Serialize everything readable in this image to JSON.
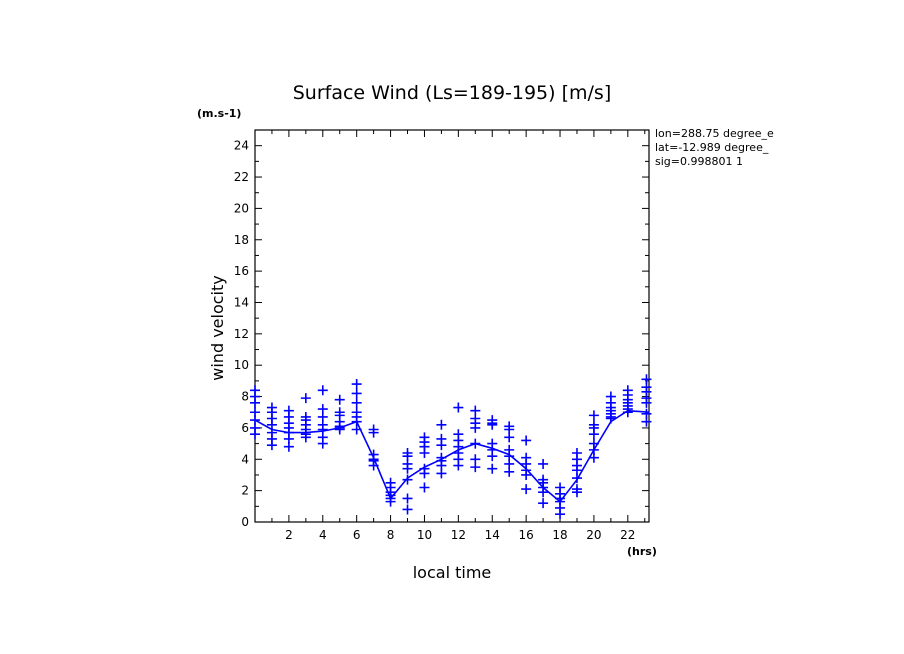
{
  "chart_data": {
    "type": "scatter",
    "title": "Surface Wind  (Ls=189-195) [m/s]",
    "xlabel": "local time",
    "ylabel": "wind velocity",
    "x_unit": "(hrs)",
    "y_unit": "(m.s-1)",
    "xlim": [
      0,
      23.25
    ],
    "ylim": [
      0,
      25
    ],
    "x_ticks": [
      2,
      4,
      6,
      8,
      10,
      12,
      14,
      16,
      18,
      20,
      22
    ],
    "y_ticks": [
      0,
      2,
      4,
      6,
      8,
      10,
      12,
      14,
      16,
      18,
      20,
      22,
      24
    ],
    "annotations": [
      "lon=288.75 degree_e",
      "lat=-12.989 degree_",
      "sig=0.998801 1"
    ],
    "series": [
      {
        "name": "mean",
        "kind": "line",
        "color": "#0000ff",
        "x": [
          0,
          1,
          2,
          3,
          4,
          5,
          6,
          7,
          8,
          9,
          10,
          11,
          12,
          13,
          14,
          15,
          16,
          17,
          18,
          19,
          20,
          21,
          22,
          23.25
        ],
        "y": [
          6.5,
          5.9,
          5.7,
          5.7,
          5.8,
          6.0,
          6.4,
          4.1,
          1.5,
          2.8,
          3.5,
          4.0,
          4.6,
          5.0,
          4.7,
          4.3,
          3.4,
          2.2,
          1.3,
          2.7,
          4.6,
          6.4,
          7.1,
          7.0
        ]
      },
      {
        "name": "samples",
        "kind": "scatter",
        "marker": "+",
        "color": "#0000ff",
        "points": [
          [
            0,
            8.4
          ],
          [
            0,
            8.0
          ],
          [
            0,
            7.6
          ],
          [
            0,
            7.0
          ],
          [
            0,
            6.5
          ],
          [
            0,
            6.0
          ],
          [
            0,
            5.6
          ],
          [
            1,
            7.3
          ],
          [
            1,
            7.0
          ],
          [
            1,
            6.6
          ],
          [
            1,
            6.2
          ],
          [
            1,
            5.7
          ],
          [
            1,
            5.3
          ],
          [
            1,
            4.9
          ],
          [
            2,
            7.1
          ],
          [
            2,
            6.7
          ],
          [
            2,
            6.3
          ],
          [
            2,
            6.0
          ],
          [
            2,
            5.7
          ],
          [
            2,
            5.3
          ],
          [
            2,
            4.8
          ],
          [
            3,
            7.9
          ],
          [
            3,
            6.7
          ],
          [
            3,
            6.5
          ],
          [
            3,
            6.2
          ],
          [
            3,
            5.9
          ],
          [
            3,
            5.6
          ],
          [
            3,
            5.4
          ],
          [
            4,
            8.4
          ],
          [
            4,
            7.2
          ],
          [
            4,
            6.7
          ],
          [
            4,
            6.2
          ],
          [
            4,
            5.9
          ],
          [
            4,
            5.4
          ],
          [
            4,
            5.0
          ],
          [
            5,
            7.8
          ],
          [
            5,
            7.0
          ],
          [
            5,
            6.8
          ],
          [
            5,
            6.4
          ],
          [
            5,
            6.1
          ],
          [
            5,
            6.0
          ],
          [
            5,
            5.9
          ],
          [
            6,
            8.8
          ],
          [
            6,
            8.2
          ],
          [
            6,
            7.6
          ],
          [
            6,
            7.0
          ],
          [
            6,
            6.7
          ],
          [
            6,
            6.4
          ],
          [
            6,
            5.9
          ],
          [
            7,
            5.9
          ],
          [
            7,
            5.7
          ],
          [
            7,
            4.3
          ],
          [
            7,
            4.0
          ],
          [
            7,
            3.9
          ],
          [
            7,
            3.6
          ],
          [
            8,
            2.5
          ],
          [
            8,
            2.2
          ],
          [
            8,
            1.9
          ],
          [
            8,
            1.7
          ],
          [
            8,
            1.5
          ],
          [
            8,
            1.3
          ],
          [
            9,
            4.4
          ],
          [
            9,
            4.2
          ],
          [
            9,
            3.7
          ],
          [
            9,
            3.4
          ],
          [
            9,
            2.7
          ],
          [
            9,
            1.5
          ],
          [
            9,
            0.8
          ],
          [
            10,
            5.4
          ],
          [
            10,
            5.1
          ],
          [
            10,
            4.8
          ],
          [
            10,
            4.4
          ],
          [
            10,
            3.4
          ],
          [
            10,
            3.1
          ],
          [
            10,
            2.2
          ],
          [
            11,
            6.2
          ],
          [
            11,
            5.3
          ],
          [
            11,
            4.9
          ],
          [
            11,
            4.1
          ],
          [
            11,
            3.9
          ],
          [
            11,
            3.6
          ],
          [
            11,
            3.1
          ],
          [
            12,
            7.3
          ],
          [
            12,
            5.6
          ],
          [
            12,
            5.2
          ],
          [
            12,
            4.8
          ],
          [
            12,
            4.4
          ],
          [
            12,
            4.0
          ],
          [
            12,
            3.6
          ],
          [
            13,
            7.1
          ],
          [
            13,
            6.6
          ],
          [
            13,
            6.3
          ],
          [
            13,
            6.0
          ],
          [
            13,
            5.0
          ],
          [
            13,
            4.0
          ],
          [
            13,
            3.5
          ],
          [
            14,
            6.5
          ],
          [
            14,
            6.3
          ],
          [
            14,
            6.2
          ],
          [
            14,
            5.0
          ],
          [
            14,
            4.6
          ],
          [
            14,
            4.2
          ],
          [
            14,
            3.4
          ],
          [
            15,
            6.1
          ],
          [
            15,
            5.9
          ],
          [
            15,
            5.4
          ],
          [
            15,
            4.6
          ],
          [
            15,
            4.2
          ],
          [
            15,
            3.7
          ],
          [
            15,
            3.2
          ],
          [
            16,
            5.2
          ],
          [
            16,
            4.1
          ],
          [
            16,
            3.7
          ],
          [
            16,
            3.3
          ],
          [
            16,
            3.0
          ],
          [
            16,
            2.1
          ],
          [
            17,
            3.7
          ],
          [
            17,
            2.7
          ],
          [
            17,
            2.5
          ],
          [
            17,
            2.2
          ],
          [
            17,
            1.9
          ],
          [
            17,
            1.2
          ],
          [
            18,
            2.2
          ],
          [
            18,
            1.8
          ],
          [
            18,
            1.5
          ],
          [
            18,
            1.3
          ],
          [
            18,
            0.9
          ],
          [
            18,
            0.5
          ],
          [
            19,
            4.4
          ],
          [
            19,
            4.0
          ],
          [
            19,
            3.6
          ],
          [
            19,
            3.3
          ],
          [
            19,
            2.8
          ],
          [
            19,
            2.1
          ],
          [
            19,
            1.9
          ],
          [
            20,
            6.8
          ],
          [
            20,
            6.2
          ],
          [
            20,
            6.0
          ],
          [
            20,
            5.6
          ],
          [
            20,
            5.0
          ],
          [
            20,
            4.6
          ],
          [
            20,
            4.1
          ],
          [
            21,
            8.0
          ],
          [
            21,
            7.6
          ],
          [
            21,
            7.3
          ],
          [
            21,
            7.1
          ],
          [
            21,
            6.9
          ],
          [
            21,
            6.7
          ],
          [
            21,
            6.6
          ],
          [
            22,
            8.4
          ],
          [
            22,
            8.1
          ],
          [
            22,
            7.8
          ],
          [
            22,
            7.6
          ],
          [
            22,
            7.4
          ],
          [
            22,
            7.2
          ],
          [
            22,
            7.0
          ],
          [
            23.1,
            9.1
          ],
          [
            23.1,
            8.6
          ],
          [
            23.1,
            8.3
          ],
          [
            23.1,
            7.9
          ],
          [
            23.1,
            7.6
          ],
          [
            23.1,
            6.9
          ],
          [
            23.1,
            6.4
          ]
        ]
      }
    ]
  }
}
